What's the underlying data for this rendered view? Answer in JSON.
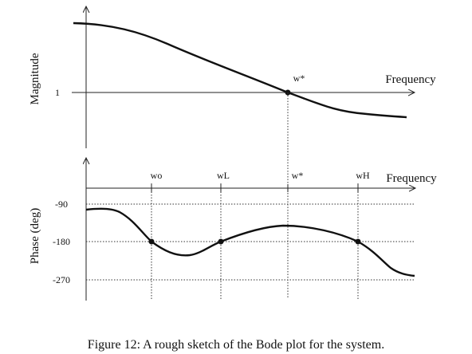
{
  "magnitude_plot": {
    "ylabel": "Magnitude",
    "y_tick": "1",
    "x_axis_label": "Frequency",
    "marker_label": "w*",
    "curve": "decreasing magnitude crossing 1 at w*"
  },
  "phase_plot": {
    "ylabel": "Phase (deg)",
    "x_axis_label": "Frequency",
    "y_ticks": [
      "-90",
      "-180",
      "-270"
    ],
    "frequency_markers": [
      "wo",
      "wL",
      "w*",
      "wH"
    ],
    "curve": "phase near -90 at low frequency, crossing -180 at wo, dipping below, back to -180 at wL, rising toward -135 near w*, crossing -180 at wH, approaching -270"
  },
  "caption": "Figure 12: A rough sketch of the Bode plot for the system."
}
